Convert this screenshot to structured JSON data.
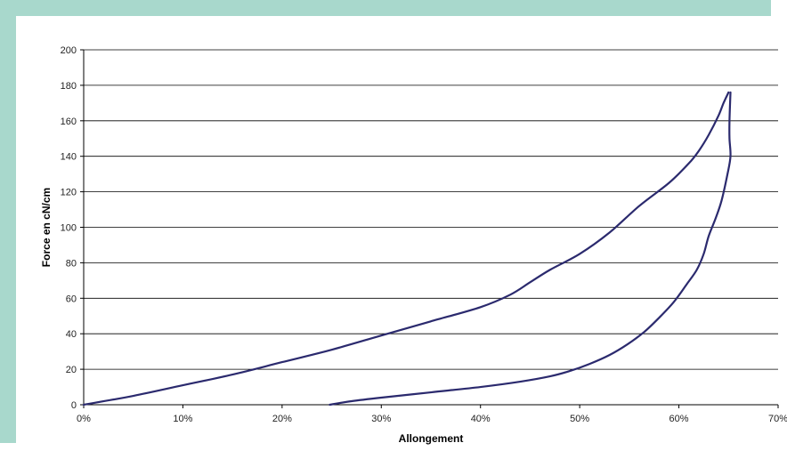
{
  "chart_data": {
    "type": "line",
    "title": "",
    "xlabel": "Allongement",
    "ylabel": "Force en cN/cm",
    "xlim": [
      0,
      0.7
    ],
    "ylim": [
      0,
      200
    ],
    "x_ticks": [
      "0%",
      "10%",
      "20%",
      "30%",
      "40%",
      "50%",
      "60%",
      "70%"
    ],
    "y_ticks": [
      "0",
      "20",
      "40",
      "60",
      "80",
      "100",
      "120",
      "140",
      "160",
      "180",
      "200"
    ],
    "grid": "horizontal",
    "legend": "none",
    "series_color": "#2b2a6e",
    "series": [
      {
        "values": [
          [
            0.0,
            0
          ],
          [
            0.05,
            5
          ],
          [
            0.1,
            11
          ],
          [
            0.15,
            17
          ],
          [
            0.2,
            24
          ],
          [
            0.25,
            31
          ],
          [
            0.3,
            39
          ],
          [
            0.35,
            47
          ],
          [
            0.4,
            55
          ],
          [
            0.43,
            62
          ],
          [
            0.45,
            69
          ],
          [
            0.47,
            76
          ],
          [
            0.5,
            85
          ],
          [
            0.53,
            97
          ],
          [
            0.56,
            112
          ],
          [
            0.59,
            125
          ],
          [
            0.61,
            136
          ],
          [
            0.62,
            143
          ],
          [
            0.63,
            152
          ],
          [
            0.64,
            163
          ],
          [
            0.645,
            170
          ],
          [
            0.65,
            176
          ]
        ]
      },
      {
        "values": [
          [
            0.652,
            176
          ],
          [
            0.651,
            160
          ],
          [
            0.651,
            150
          ],
          [
            0.652,
            140
          ],
          [
            0.649,
            130
          ],
          [
            0.643,
            115
          ],
          [
            0.637,
            105
          ],
          [
            0.63,
            95
          ],
          [
            0.625,
            85
          ],
          [
            0.618,
            76
          ],
          [
            0.608,
            68
          ],
          [
            0.595,
            58
          ],
          [
            0.58,
            49
          ],
          [
            0.565,
            41
          ],
          [
            0.548,
            34
          ],
          [
            0.53,
            28
          ],
          [
            0.51,
            23
          ],
          [
            0.49,
            19
          ],
          [
            0.47,
            16
          ],
          [
            0.44,
            13
          ],
          [
            0.4,
            10
          ],
          [
            0.35,
            7
          ],
          [
            0.3,
            4
          ],
          [
            0.27,
            2
          ],
          [
            0.248,
            0
          ]
        ]
      }
    ]
  }
}
